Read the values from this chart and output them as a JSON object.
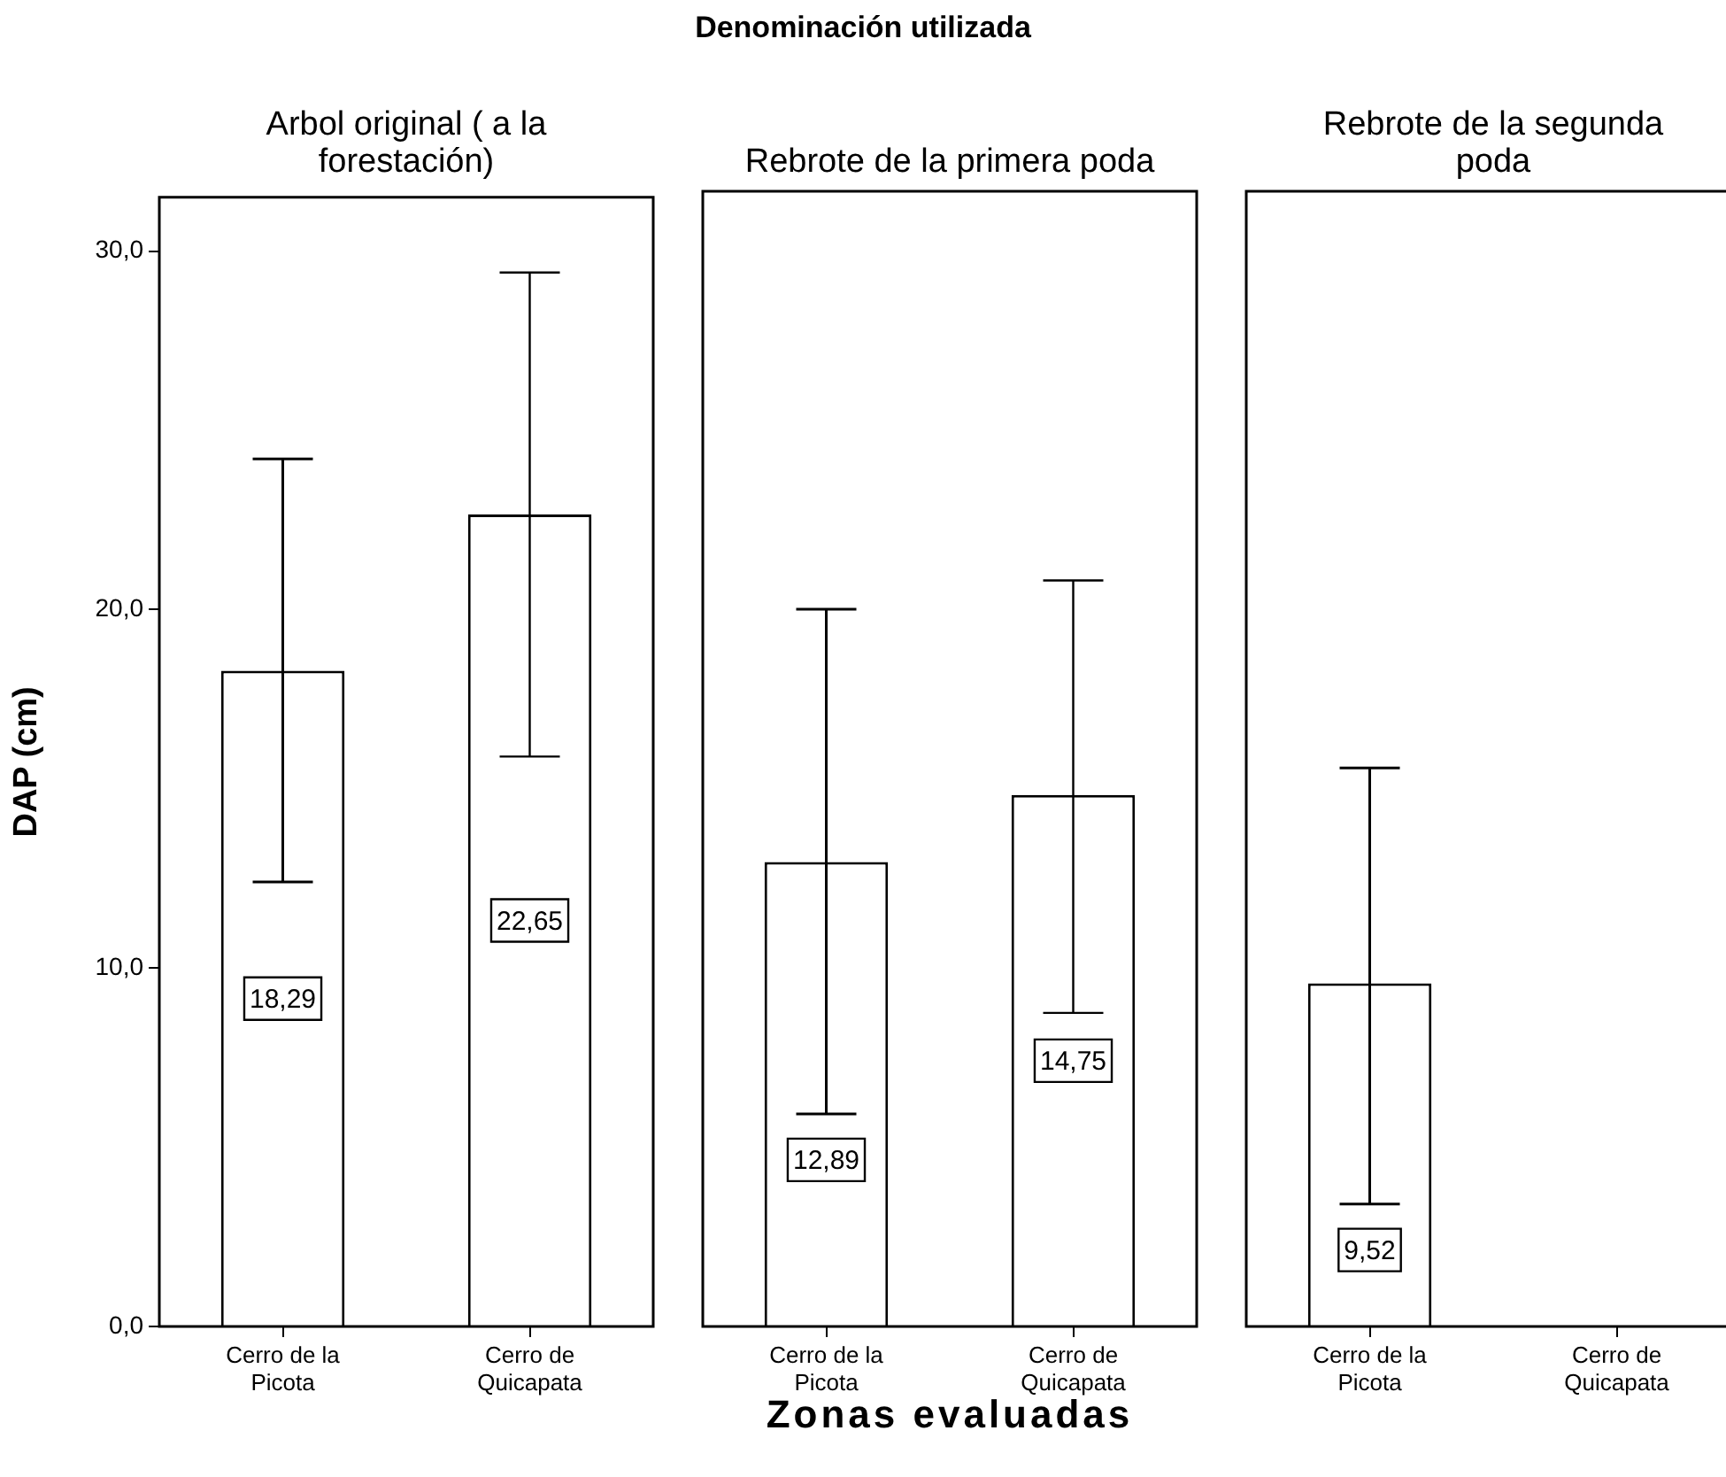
{
  "chart_data": [
    {
      "type": "bar",
      "title": "Arbol original ( a la forestación)",
      "ylabel": "DAP (cm)",
      "categories": [
        "Cerro de la Picota",
        "Cerro de Quicapata"
      ],
      "values": [
        18.29,
        22.65
      ],
      "errors": [
        [
          12.4,
          24.2
        ],
        [
          15.9,
          29.4
        ]
      ],
      "value_labels": [
        "18,29",
        "22,65"
      ],
      "color": "#ffffff",
      "ylim": [
        0,
        31.5
      ],
      "yticks": [
        {
          "value": 0,
          "label": "0,0"
        },
        {
          "value": 10,
          "label": "10,0"
        },
        {
          "value": 20,
          "label": "20,0"
        },
        {
          "value": 30,
          "label": "30,0"
        }
      ],
      "grid": false,
      "legend": false
    },
    {
      "type": "bar",
      "title": "Rebrote de la primera poda",
      "annotations": [
        "Denominación utilizada"
      ],
      "xlabel": "Zonas evaluadas",
      "categories": [
        "Cerro de la Picota",
        "Cerro de Quicapata"
      ],
      "values": [
        12.89,
        14.75
      ],
      "errors": [
        [
          5.9,
          19.9
        ],
        [
          8.7,
          20.7
        ]
      ],
      "value_labels": [
        "12,89",
        "14,75"
      ],
      "color": "#ffffff",
      "ylim": [
        0,
        31.5
      ],
      "tick_labels": "x",
      "grid": false,
      "legend": false
    },
    {
      "type": "bar",
      "title": "Rebrote de la segunda poda",
      "categories": [
        "Cerro de la Picota",
        "Cerro de Quicapata"
      ],
      "values": [
        9.52,
        null
      ],
      "errors": [
        [
          3.4,
          15.5
        ],
        null
      ],
      "value_labels": [
        "9,52",
        null
      ],
      "color": "#ffffff",
      "ylim": [
        0,
        31.5
      ],
      "tick_labels": "x",
      "grid": false,
      "legend": false
    }
  ]
}
